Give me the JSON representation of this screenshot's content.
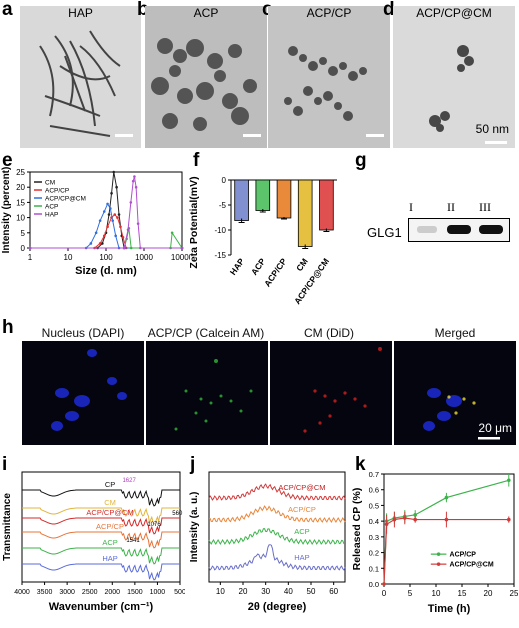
{
  "panels": {
    "a": {
      "letter": "a",
      "title": "HAP"
    },
    "b": {
      "letter": "b",
      "title": "ACP"
    },
    "c": {
      "letter": "c",
      "title": "ACP/CP"
    },
    "d": {
      "letter": "d",
      "title": "ACP/CP@CM",
      "scale_text": "50 nm"
    },
    "e": {
      "letter": "e"
    },
    "f": {
      "letter": "f"
    },
    "g": {
      "letter": "g",
      "lanes": [
        "I",
        "II",
        "III"
      ],
      "protein": "GLG1"
    },
    "h": {
      "letter": "h",
      "titles": [
        "Nucleus (DAPI)",
        "ACP/CP (Calcein AM)",
        "CM (DiD)",
        "Merged"
      ],
      "scale_text": "20 μm"
    },
    "i": {
      "letter": "i"
    },
    "j": {
      "letter": "j"
    },
    "k": {
      "letter": "k"
    }
  },
  "colors": {
    "cm": "#222222",
    "acpcp": "#e03030",
    "acpcpcm": "#2f6fe0",
    "acp": "#3cb34a",
    "hap": "#b04fd0",
    "bar_hap": "#8090d0",
    "bar_acp": "#5cc46a",
    "bar_acpcp": "#e88a3a",
    "bar_cm": "#e6c040",
    "bar_acpcpcm": "#e05050"
  },
  "chart_data": [
    {
      "id": "e",
      "type": "line",
      "xlabel": "Size (d. nm)",
      "ylabel": "Intensity (percent)",
      "xscale": "log",
      "xlim": [
        1,
        10000
      ],
      "ylim": [
        0,
        25
      ],
      "xticks": [
        "1",
        "10",
        "100",
        "1000",
        "10000"
      ],
      "yticks": [
        "0",
        "5",
        "10",
        "15",
        "20",
        "25"
      ],
      "legend": [
        "CM",
        "ACP/CP",
        "ACP/CP@CM",
        "ACP",
        "HAP"
      ],
      "series": [
        {
          "name": "CM",
          "x": [
            1,
            60,
            80,
            100,
            120,
            140,
            160,
            190,
            220,
            260,
            300,
            10000
          ],
          "y": [
            0,
            0,
            1.5,
            5,
            11,
            18,
            25,
            20,
            11,
            4,
            0,
            0
          ]
        },
        {
          "name": "ACP/CP",
          "x": [
            1,
            50,
            70,
            90,
            110,
            140,
            170,
            200,
            240,
            280,
            340,
            10000
          ],
          "y": [
            0,
            0,
            1.5,
            4,
            7,
            10,
            11,
            10,
            7,
            3.5,
            0,
            0
          ]
        },
        {
          "name": "ACP/CP@CM",
          "x": [
            1,
            30,
            40,
            55,
            70,
            90,
            110,
            130,
            150,
            180,
            220,
            10000
          ],
          "y": [
            0,
            0,
            1.5,
            5,
            9,
            12,
            14.5,
            13,
            9,
            4,
            0,
            0
          ]
        },
        {
          "name": "ACP",
          "x": [
            1,
            300,
            350,
            400,
            460,
            5000,
            5500,
            10000
          ],
          "y": [
            0,
            0,
            3,
            6.5,
            0,
            0,
            5,
            0
          ]
        },
        {
          "name": "HAP",
          "x": [
            1,
            300,
            380,
            450,
            520,
            560,
            620,
            700,
            800,
            10000
          ],
          "y": [
            0,
            0,
            6,
            15,
            22,
            23.5,
            20,
            8,
            0,
            0
          ]
        }
      ]
    },
    {
      "id": "f",
      "type": "bar",
      "ylabel": "Zeta Potential(mV)",
      "categories": [
        "HAP",
        "ACP",
        "ACP/CP",
        "CM",
        "ACP/CP@CM"
      ],
      "values": [
        -8.1,
        -6.1,
        -7.6,
        -13.3,
        -10.0
      ],
      "errors": [
        0.4,
        0.3,
        0.2,
        0.4,
        0.3
      ],
      "ylim": [
        -15,
        0
      ],
      "yticks": [
        "0",
        "-5",
        "-10",
        "-15"
      ]
    },
    {
      "id": "i",
      "type": "line",
      "xlabel": "Wavenumber (cm⁻¹)",
      "ylabel": "Transmittance",
      "xlim": [
        4000,
        500
      ],
      "xticks": [
        "4000",
        "3500",
        "3000",
        "2500",
        "2000",
        "1500",
        "1000",
        "500"
      ],
      "series": [
        {
          "name": "CP"
        },
        {
          "name": "CM"
        },
        {
          "name": "ACP/CP@CM"
        },
        {
          "name": "ACP/CP"
        },
        {
          "name": "ACP"
        },
        {
          "name": "HAP"
        }
      ],
      "annotations": [
        "1627",
        "1076",
        "1541",
        "560"
      ]
    },
    {
      "id": "j",
      "type": "line",
      "xlabel": "2θ (degree)",
      "ylabel": "Intensity (a. u.)",
      "xlim": [
        5,
        65
      ],
      "xticks": [
        "10",
        "20",
        "30",
        "40",
        "50",
        "60"
      ],
      "series": [
        {
          "name": "ACP/CP@CM"
        },
        {
          "name": "ACP/CP"
        },
        {
          "name": "ACP"
        },
        {
          "name": "HAP"
        }
      ]
    },
    {
      "id": "k",
      "type": "line",
      "xlabel": "Time (h)",
      "ylabel": "Released CP (%)",
      "xlim": [
        0,
        25
      ],
      "ylim": [
        0,
        0.7
      ],
      "xticks": [
        "0",
        "5",
        "10",
        "15",
        "20",
        "25"
      ],
      "yticks": [
        "0.0",
        "0.1",
        "0.2",
        "0.3",
        "0.4",
        "0.5",
        "0.6",
        "0.7"
      ],
      "series": [
        {
          "name": "ACP/CP",
          "x": [
            0,
            0.5,
            2,
            4,
            6,
            12,
            24
          ],
          "y": [
            0,
            0.4,
            0.42,
            0.43,
            0.44,
            0.55,
            0.66
          ],
          "err": [
            0,
            0.05,
            0.04,
            0.04,
            0.03,
            0.03,
            0.04
          ]
        },
        {
          "name": "ACP/CP@CM",
          "x": [
            0,
            0.5,
            2,
            4,
            6,
            12,
            24
          ],
          "y": [
            0,
            0.38,
            0.41,
            0.42,
            0.41,
            0.41,
            0.41
          ],
          "err": [
            0,
            0.06,
            0.05,
            0.04,
            0.02,
            0.05,
            0.02
          ]
        }
      ]
    }
  ]
}
